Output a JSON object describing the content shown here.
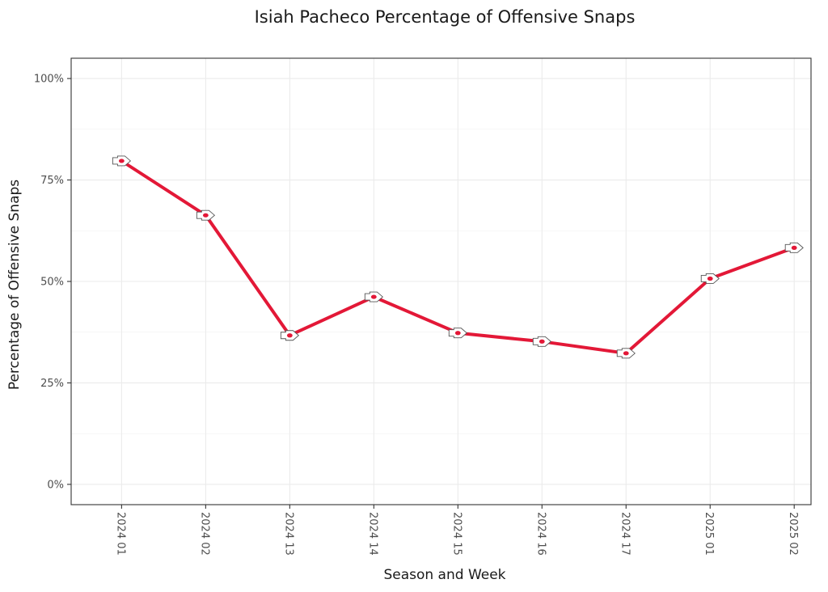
{
  "chart_data": {
    "type": "line",
    "title": "Isiah Pacheco Percentage of Offensive Snaps",
    "xlabel": "Season and Week",
    "ylabel": "Percentage of Offensive Snaps",
    "categories": [
      "2024 01",
      "2024 02",
      "2024 13",
      "2024 14",
      "2024 15",
      "2024 16",
      "2024 17",
      "2025 01",
      "2025 02"
    ],
    "series": [
      {
        "name": "Isiah Pacheco",
        "values": [
          0.797,
          0.663,
          0.367,
          0.462,
          0.373,
          0.352,
          0.323,
          0.507,
          0.583
        ],
        "color": "#e31837",
        "marker": "Kansas City Chiefs logo"
      }
    ],
    "ylim": [
      -0.05,
      1.05
    ],
    "yticks": [
      0,
      0.25,
      0.5,
      0.75,
      1.0
    ],
    "ytick_labels": [
      "0%",
      "25%",
      "50%",
      "75%",
      "100%"
    ],
    "grid": true,
    "legend": "none"
  }
}
